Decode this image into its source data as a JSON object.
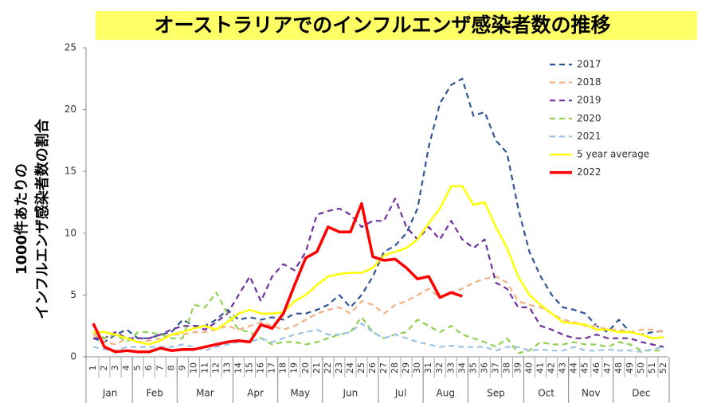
{
  "chart_data": {
    "type": "line",
    "title": "オーストラリアでのインフルエンザ感染者数の推移",
    "ylabel": [
      "1000件あたりの",
      "インフルエンザ感染者数の割合"
    ],
    "categories": [
      "1",
      "2",
      "3",
      "4",
      "5",
      "6",
      "7",
      "8",
      "9",
      "10",
      "11",
      "12",
      "13",
      "14",
      "15",
      "16",
      "17",
      "18",
      "19",
      "20",
      "21",
      "22",
      "23",
      "24",
      "25",
      "26",
      "27",
      "28",
      "29",
      "30",
      "31",
      "32",
      "33",
      "34",
      "35",
      "36",
      "37",
      "38",
      "39",
      "40",
      "41",
      "42",
      "43",
      "44",
      "45",
      "46",
      "47",
      "48",
      "49",
      "50",
      "51",
      "52"
    ],
    "months": [
      "Jan",
      "Feb",
      "Mar",
      "Apr",
      "May",
      "Jun",
      "Jul",
      "Aug",
      "Sep",
      "Oct",
      "Nov",
      "Dec"
    ],
    "ylim": [
      0,
      25
    ],
    "yticks": [
      0,
      5,
      10,
      15,
      20,
      25
    ],
    "grid": false,
    "legend": "top-right",
    "series": [
      {
        "name": "2017",
        "color": "#2f5597",
        "style": "dashed",
        "values": [
          1.5,
          1.2,
          1.8,
          2.2,
          1.5,
          1.5,
          1.8,
          2.0,
          3.0,
          2.5,
          2.5,
          3.0,
          3.8,
          3.0,
          3.2,
          3.0,
          3.2,
          3.0,
          3.5,
          3.5,
          3.8,
          4.2,
          5.0,
          4.0,
          5.0,
          6.5,
          8.5,
          9.0,
          10.0,
          12.0,
          17.0,
          20.5,
          22.0,
          22.5,
          19.5,
          19.8,
          17.5,
          16.5,
          12.0,
          8.5,
          6.5,
          5.0,
          4.0,
          3.8,
          3.5,
          2.5,
          2.0,
          3.0,
          2.0,
          1.8,
          2.0,
          2.1
        ]
      },
      {
        "name": "2018",
        "color": "#f4b183",
        "style": "dashed",
        "values": [
          1.8,
          1.2,
          1.0,
          1.5,
          1.2,
          1.3,
          1.5,
          1.8,
          1.8,
          2.0,
          2.0,
          2.2,
          2.5,
          2.2,
          2.5,
          2.8,
          2.5,
          2.2,
          2.5,
          3.0,
          3.5,
          3.8,
          4.0,
          3.5,
          4.5,
          4.2,
          3.5,
          4.2,
          4.5,
          5.0,
          5.5,
          4.8,
          5.2,
          5.5,
          6.0,
          6.3,
          6.5,
          6.0,
          4.5,
          4.2,
          4.0,
          3.5,
          3.0,
          2.8,
          2.5,
          2.5,
          2.2,
          2.2,
          2.0,
          2.2,
          2.2,
          2.0
        ]
      },
      {
        "name": "2019",
        "color": "#7030a0",
        "style": "dashed",
        "values": [
          1.5,
          1.5,
          2.0,
          1.5,
          1.5,
          1.5,
          1.8,
          2.2,
          2.5,
          2.5,
          2.2,
          2.8,
          3.5,
          5.0,
          6.5,
          4.5,
          6.5,
          7.5,
          7.0,
          8.5,
          11.5,
          11.8,
          12.0,
          11.5,
          10.5,
          11.0,
          11.0,
          12.8,
          10.5,
          9.5,
          10.5,
          9.5,
          11.0,
          9.5,
          8.8,
          9.5,
          6.0,
          5.5,
          4.0,
          4.0,
          2.5,
          2.2,
          1.8,
          1.5,
          1.5,
          1.8,
          1.5,
          1.5,
          1.5,
          1.2,
          1.0,
          0.8
        ]
      },
      {
        "name": "2020",
        "color": "#92d050",
        "style": "dashed",
        "values": [
          2.0,
          1.5,
          1.8,
          1.2,
          2.0,
          2.0,
          1.8,
          1.5,
          1.5,
          4.2,
          4.0,
          5.2,
          3.5,
          2.2,
          2.0,
          1.5,
          1.0,
          1.2,
          1.2,
          1.0,
          1.2,
          1.5,
          1.8,
          2.0,
          3.2,
          2.0,
          1.5,
          1.8,
          2.0,
          3.0,
          2.5,
          2.0,
          2.5,
          1.8,
          1.5,
          1.2,
          0.8,
          1.5,
          0.3,
          0.5,
          1.2,
          1.0,
          1.0,
          1.2,
          1.0,
          1.0,
          0.8,
          1.2,
          1.0,
          0.5,
          0.5,
          0.5
        ]
      },
      {
        "name": "2021",
        "color": "#9dc3e6",
        "style": "dashed",
        "values": [
          0.8,
          0.6,
          0.5,
          0.8,
          0.8,
          0.8,
          0.8,
          0.8,
          1.0,
          0.8,
          0.5,
          0.8,
          1.0,
          1.2,
          1.2,
          1.5,
          1.2,
          1.5,
          1.8,
          2.0,
          2.2,
          1.8,
          1.8,
          2.0,
          2.7,
          2.0,
          1.5,
          1.8,
          1.5,
          1.2,
          1.0,
          0.8,
          0.9,
          0.8,
          0.8,
          0.8,
          0.5,
          0.8,
          0.8,
          0.5,
          0.6,
          0.5,
          0.5,
          0.8,
          0.5,
          0.5,
          0.6,
          0.5,
          0.5,
          0.4,
          0.6,
          0.8
        ]
      },
      {
        "name": "5 year average",
        "color": "#ffff00",
        "style": "solid",
        "values": [
          2.0,
          2.0,
          1.8,
          1.5,
          1.2,
          1.0,
          1.3,
          1.8,
          2.0,
          2.3,
          2.5,
          2.2,
          2.8,
          3.5,
          3.8,
          3.5,
          3.5,
          3.6,
          4.5,
          5.0,
          5.8,
          6.5,
          6.7,
          6.8,
          6.8,
          7.2,
          8.2,
          8.5,
          8.8,
          9.5,
          10.8,
          12.0,
          13.8,
          13.8,
          12.3,
          12.5,
          10.5,
          8.8,
          6.5,
          5.0,
          4.2,
          3.5,
          2.8,
          2.7,
          2.6,
          2.2,
          2.2,
          2.0,
          2.0,
          1.8,
          1.5,
          1.6
        ]
      },
      {
        "name": "2022",
        "color": "#ff0000",
        "style": "thick",
        "values": [
          2.7,
          0.8,
          0.4,
          0.5,
          0.4,
          0.4,
          0.7,
          0.5,
          0.6,
          0.6,
          0.8,
          1.0,
          1.2,
          1.3,
          1.2,
          2.6,
          2.3,
          3.5,
          5.8,
          8.0,
          8.5,
          10.5,
          10.1,
          10.1,
          12.4,
          8.1,
          7.8,
          7.9,
          7.2,
          6.3,
          6.5,
          4.8,
          5.2,
          4.9,
          null,
          null,
          null,
          null,
          null,
          null,
          null,
          null,
          null,
          null,
          null,
          null,
          null,
          null,
          null,
          null,
          null,
          null
        ]
      }
    ]
  }
}
